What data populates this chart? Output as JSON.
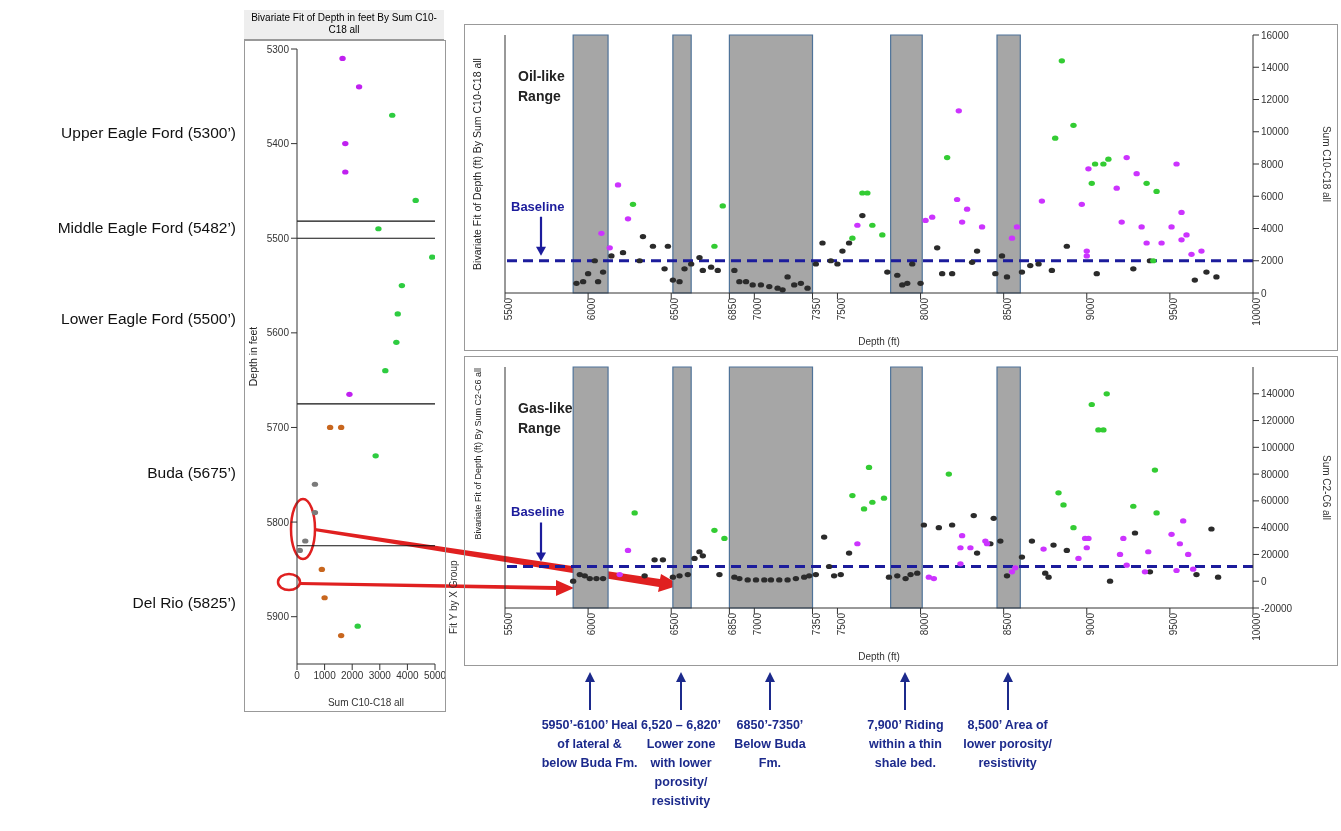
{
  "chart_data": [
    {
      "type": "scatter",
      "title": "Bivariate Fit of Depth in feet By Sum C10-C18 all",
      "xlabel": "Sum C10-C18 all",
      "ylabel": "Depth in feet",
      "xlim": [
        0,
        5000
      ],
      "xticks": [
        0,
        1000,
        2000,
        3000,
        4000,
        5000
      ],
      "ylim": [
        5950,
        5300
      ],
      "yticks": [
        5300,
        5400,
        5500,
        5600,
        5700,
        5800,
        5900
      ],
      "marker": "circle",
      "series": [
        {
          "color": "#c020f0",
          "x": [
            1650,
            2250,
            1750,
            1750,
            1900
          ],
          "values": [
            5310,
            5340,
            5400,
            5430,
            5665
          ]
        },
        {
          "color": "#2ecc40",
          "x": [
            3450,
            4300,
            2950,
            4900,
            3800,
            3650,
            3600,
            3200,
            2850,
            2200
          ],
          "values": [
            5370,
            5460,
            5490,
            5520,
            5550,
            5580,
            5610,
            5640,
            5730,
            5910
          ]
        },
        {
          "color": "#c8661e",
          "x": [
            1200,
            1600,
            900,
            1000,
            1600
          ],
          "values": [
            5700,
            5700,
            5850,
            5880,
            5920
          ]
        },
        {
          "color": "#7a7a7a",
          "x": [
            650,
            650,
            300,
            100
          ],
          "values": [
            5760,
            5790,
            5820,
            5830
          ]
        }
      ],
      "annotations": [
        "Upper Eagle Ford (5300’)",
        "Middle Eagle Ford (5482’)",
        "Lower Eagle Ford (5500’)",
        "Buda (5675’)",
        "Del Rio (5825’)"
      ],
      "ref_lines": [
        {
          "axis": "y",
          "value": 5482,
          "color": "#111111"
        },
        {
          "axis": "y",
          "value": 5500,
          "color": "#111111"
        },
        {
          "axis": "y",
          "value": 5675,
          "color": "#111111"
        },
        {
          "axis": "y",
          "value": 5825,
          "color": "#111111"
        }
      ]
    },
    {
      "type": "scatter",
      "xlabel": "Depth (ft)",
      "ylabel": "Bivariate Fit of Depth (ft) By Sum C10-C18 all",
      "y2label": "Sum C10-C18 all",
      "xlim": [
        5500,
        10000
      ],
      "xticks": [
        5500,
        6000,
        6500,
        6850,
        7000,
        7350,
        7500,
        8000,
        8500,
        9000,
        9500,
        10000
      ],
      "y2lim": [
        0,
        16000
      ],
      "y2ticks": [
        0,
        2000,
        4000,
        6000,
        8000,
        10000,
        12000,
        14000,
        16000
      ],
      "marker": "circle",
      "annotations": [
        "Oil-like Range"
      ],
      "series": [
        {
          "color": "#2b2b2b",
          "axis": "y2",
          "x": [
            5930,
            5970,
            6000,
            6060,
            6090,
            6040,
            6140,
            6210,
            6330,
            6390,
            6310,
            6460,
            6480,
            6510,
            6550,
            6580,
            6620,
            6670,
            6690,
            6740,
            6780,
            6880,
            6910,
            6950,
            6990,
            7040,
            7090,
            7140,
            7170,
            7200,
            7240,
            7280,
            7320,
            7370,
            7410,
            7460,
            7500,
            7530,
            7570,
            7650,
            7800,
            7860,
            7890,
            7920,
            7950,
            8000,
            8100,
            8130,
            8190,
            8310,
            8340,
            8450,
            8490,
            8520,
            8610,
            8660,
            8710,
            8790,
            8880,
            9060,
            9280,
            9380,
            9650,
            9720,
            9780
          ],
          "values": [
            600,
            700,
            1200,
            700,
            1300,
            2000,
            2300,
            2500,
            3500,
            2900,
            2000,
            1500,
            2900,
            800,
            700,
            1500,
            1800,
            2200,
            1400,
            1600,
            1400,
            1400,
            700,
            700,
            500,
            500,
            400,
            300,
            200,
            1000,
            500,
            600,
            300,
            1800,
            3100,
            2000,
            1800,
            2600,
            3100,
            4800,
            1300,
            1100,
            500,
            600,
            1800,
            600,
            2800,
            1200,
            1200,
            1900,
            2600,
            1200,
            2300,
            1000,
            1300,
            1700,
            1800,
            1400,
            2900,
            1200,
            1500,
            2000,
            800,
            1300,
            1000
          ]
        },
        {
          "color": "#cc33ff",
          "axis": "y2",
          "x": [
            6080,
            6130,
            6180,
            6240,
            7620,
            8030,
            8070,
            8230,
            8220,
            8250,
            8280,
            8370,
            8550,
            8580,
            8730,
            8970,
            9000,
            9010,
            9000,
            9180,
            9210,
            9240,
            9300,
            9330,
            9360,
            9450,
            9510,
            9540,
            9570,
            9570,
            9600,
            9630,
            9690
          ],
          "values": [
            3700,
            2800,
            6700,
            4600,
            4200,
            4500,
            4700,
            11300,
            5800,
            4400,
            5200,
            4100,
            3400,
            4100,
            5700,
            5500,
            2300,
            7700,
            2600,
            6500,
            4400,
            8400,
            7400,
            4100,
            3100,
            3100,
            4100,
            8000,
            5000,
            3300,
            3600,
            2400,
            2600
          ]
        },
        {
          "color": "#33cc33",
          "axis": "y2",
          "x": [
            6270,
            6760,
            6810,
            7590,
            7650,
            7680,
            7710,
            7770,
            8160,
            8810,
            8850,
            8920,
            9030,
            9050,
            9100,
            9130,
            9360,
            9420,
            9400
          ],
          "values": [
            5500,
            2900,
            5400,
            3400,
            6200,
            6200,
            4200,
            3600,
            8400,
            9600,
            14400,
            10400,
            6800,
            8000,
            8000,
            8300,
            6800,
            6300,
            2000
          ]
        }
      ],
      "ref_lines": [
        {
          "axis": "y2",
          "value": 2000,
          "label": "Baseline",
          "color": "#1c1c9c",
          "line_style": "dashed"
        }
      ],
      "bands": [
        {
          "axis": "x",
          "from": 5910,
          "to": 6120,
          "color": "#a6a6a6"
        },
        {
          "axis": "x",
          "from": 6510,
          "to": 6620,
          "color": "#a6a6a6"
        },
        {
          "axis": "x",
          "from": 6850,
          "to": 7350,
          "color": "#a6a6a6"
        },
        {
          "axis": "x",
          "from": 7820,
          "to": 8010,
          "color": "#a6a6a6"
        },
        {
          "axis": "x",
          "from": 8460,
          "to": 8600,
          "color": "#a6a6a6"
        }
      ]
    },
    {
      "type": "scatter",
      "xlabel": "Depth (ft)",
      "ylabel": "Bivariate Fit of Depth (ft) By Sum C2-C6 all",
      "y2label": "Sum C2-C6 all",
      "xlim": [
        5500,
        10000
      ],
      "xticks": [
        5500,
        6000,
        6500,
        6850,
        7000,
        7350,
        7500,
        8000,
        8500,
        9000,
        9500,
        10000
      ],
      "y2lim": [
        -20000,
        160000
      ],
      "y2ticks": [
        -20000,
        0,
        20000,
        40000,
        60000,
        80000,
        100000,
        120000,
        140000
      ],
      "marker": "circle",
      "annotations": [
        "Gas-like Range",
        "Fit Y by X Group",
        "5950’-6100’ Heal of lateral & below Buda Fm.",
        "6,520 – 6,820’ Lower zone with lower porosity/ resistivity",
        "6850’-7350’ Below Buda Fm.",
        "7,900’ Riding within a thin shale bed.",
        "8,500’ Area of lower porosity/ resistivity"
      ],
      "series": [
        {
          "color": "#2b2b2b",
          "axis": "y2",
          "x": [
            5910,
            5950,
            5980,
            6010,
            6050,
            6090,
            6200,
            6340,
            6400,
            6450,
            6510,
            6550,
            6600,
            6640,
            6670,
            6690,
            6790,
            6880,
            6910,
            6960,
            7010,
            7060,
            7100,
            7150,
            7200,
            7250,
            7300,
            7330,
            7370,
            7420,
            7450,
            7480,
            7520,
            7570,
            7810,
            7860,
            7910,
            7940,
            7980,
            8020,
            8110,
            8190,
            8320,
            8340,
            8420,
            8440,
            8480,
            8520,
            8610,
            8670,
            8750,
            8800,
            8770,
            8880,
            9140,
            9290,
            9380,
            9660,
            9750,
            9790
          ],
          "values": [
            0,
            5000,
            4000,
            2000,
            2000,
            2000,
            null,
            4000,
            16000,
            16000,
            3000,
            4000,
            5000,
            17000,
            22000,
            19000,
            5000,
            3000,
            2000,
            1000,
            1000,
            1000,
            1000,
            1000,
            1000,
            2000,
            3000,
            4000,
            5000,
            33000,
            11000,
            4000,
            5000,
            21000,
            3000,
            4000,
            2000,
            5000,
            6000,
            42000,
            40000,
            42000,
            49000,
            21000,
            28000,
            47000,
            30000,
            4000,
            18000,
            30000,
            6000,
            27000,
            3000,
            23000,
            0,
            36000,
            7000,
            5000,
            39000,
            3000
          ]
        },
        {
          "color": "#cc33ff",
          "axis": "y2",
          "x": [
            6190,
            6240,
            7620,
            8050,
            8080,
            8240,
            8250,
            8240,
            8300,
            8390,
            8400,
            8550,
            8570,
            8740,
            8950,
            8990,
            9000,
            9010,
            9200,
            9220,
            9240,
            9350,
            9370,
            9510,
            9540,
            9560,
            9580,
            9610,
            9640
          ],
          "values": [
            5000,
            23000,
            28000,
            3000,
            2000,
            13000,
            34000,
            25000,
            25000,
            30000,
            28000,
            7000,
            10000,
            24000,
            17000,
            32000,
            25000,
            32000,
            20000,
            32000,
            12000,
            7000,
            22000,
            35000,
            8000,
            28000,
            45000,
            20000,
            9000
          ]
        },
        {
          "color": "#33cc33",
          "axis": "y2",
          "x": [
            6280,
            6760,
            6820,
            7590,
            7660,
            7690,
            7710,
            7780,
            8170,
            8830,
            8860,
            8920,
            9030,
            9070,
            9100,
            9120,
            9280,
            9410,
            9420
          ],
          "values": [
            51000,
            38000,
            32000,
            64000,
            54000,
            85000,
            59000,
            62000,
            80000,
            66000,
            57000,
            40000,
            132000,
            113000,
            113000,
            140000,
            56000,
            83000,
            51000
          ]
        }
      ],
      "ref_lines": [
        {
          "axis": "y2",
          "value": 11000,
          "label": "Baseline",
          "color": "#1c1c9c",
          "line_style": "dashed"
        }
      ],
      "bands": [
        {
          "axis": "x",
          "from": 5910,
          "to": 6120,
          "color": "#a6a6a6"
        },
        {
          "axis": "x",
          "from": 6510,
          "to": 6620,
          "color": "#a6a6a6"
        },
        {
          "axis": "x",
          "from": 6850,
          "to": 7350,
          "color": "#a6a6a6"
        },
        {
          "axis": "x",
          "from": 7820,
          "to": 8010,
          "color": "#a6a6a6"
        },
        {
          "axis": "x",
          "from": 8460,
          "to": 8600,
          "color": "#a6a6a6"
        }
      ]
    }
  ]
}
